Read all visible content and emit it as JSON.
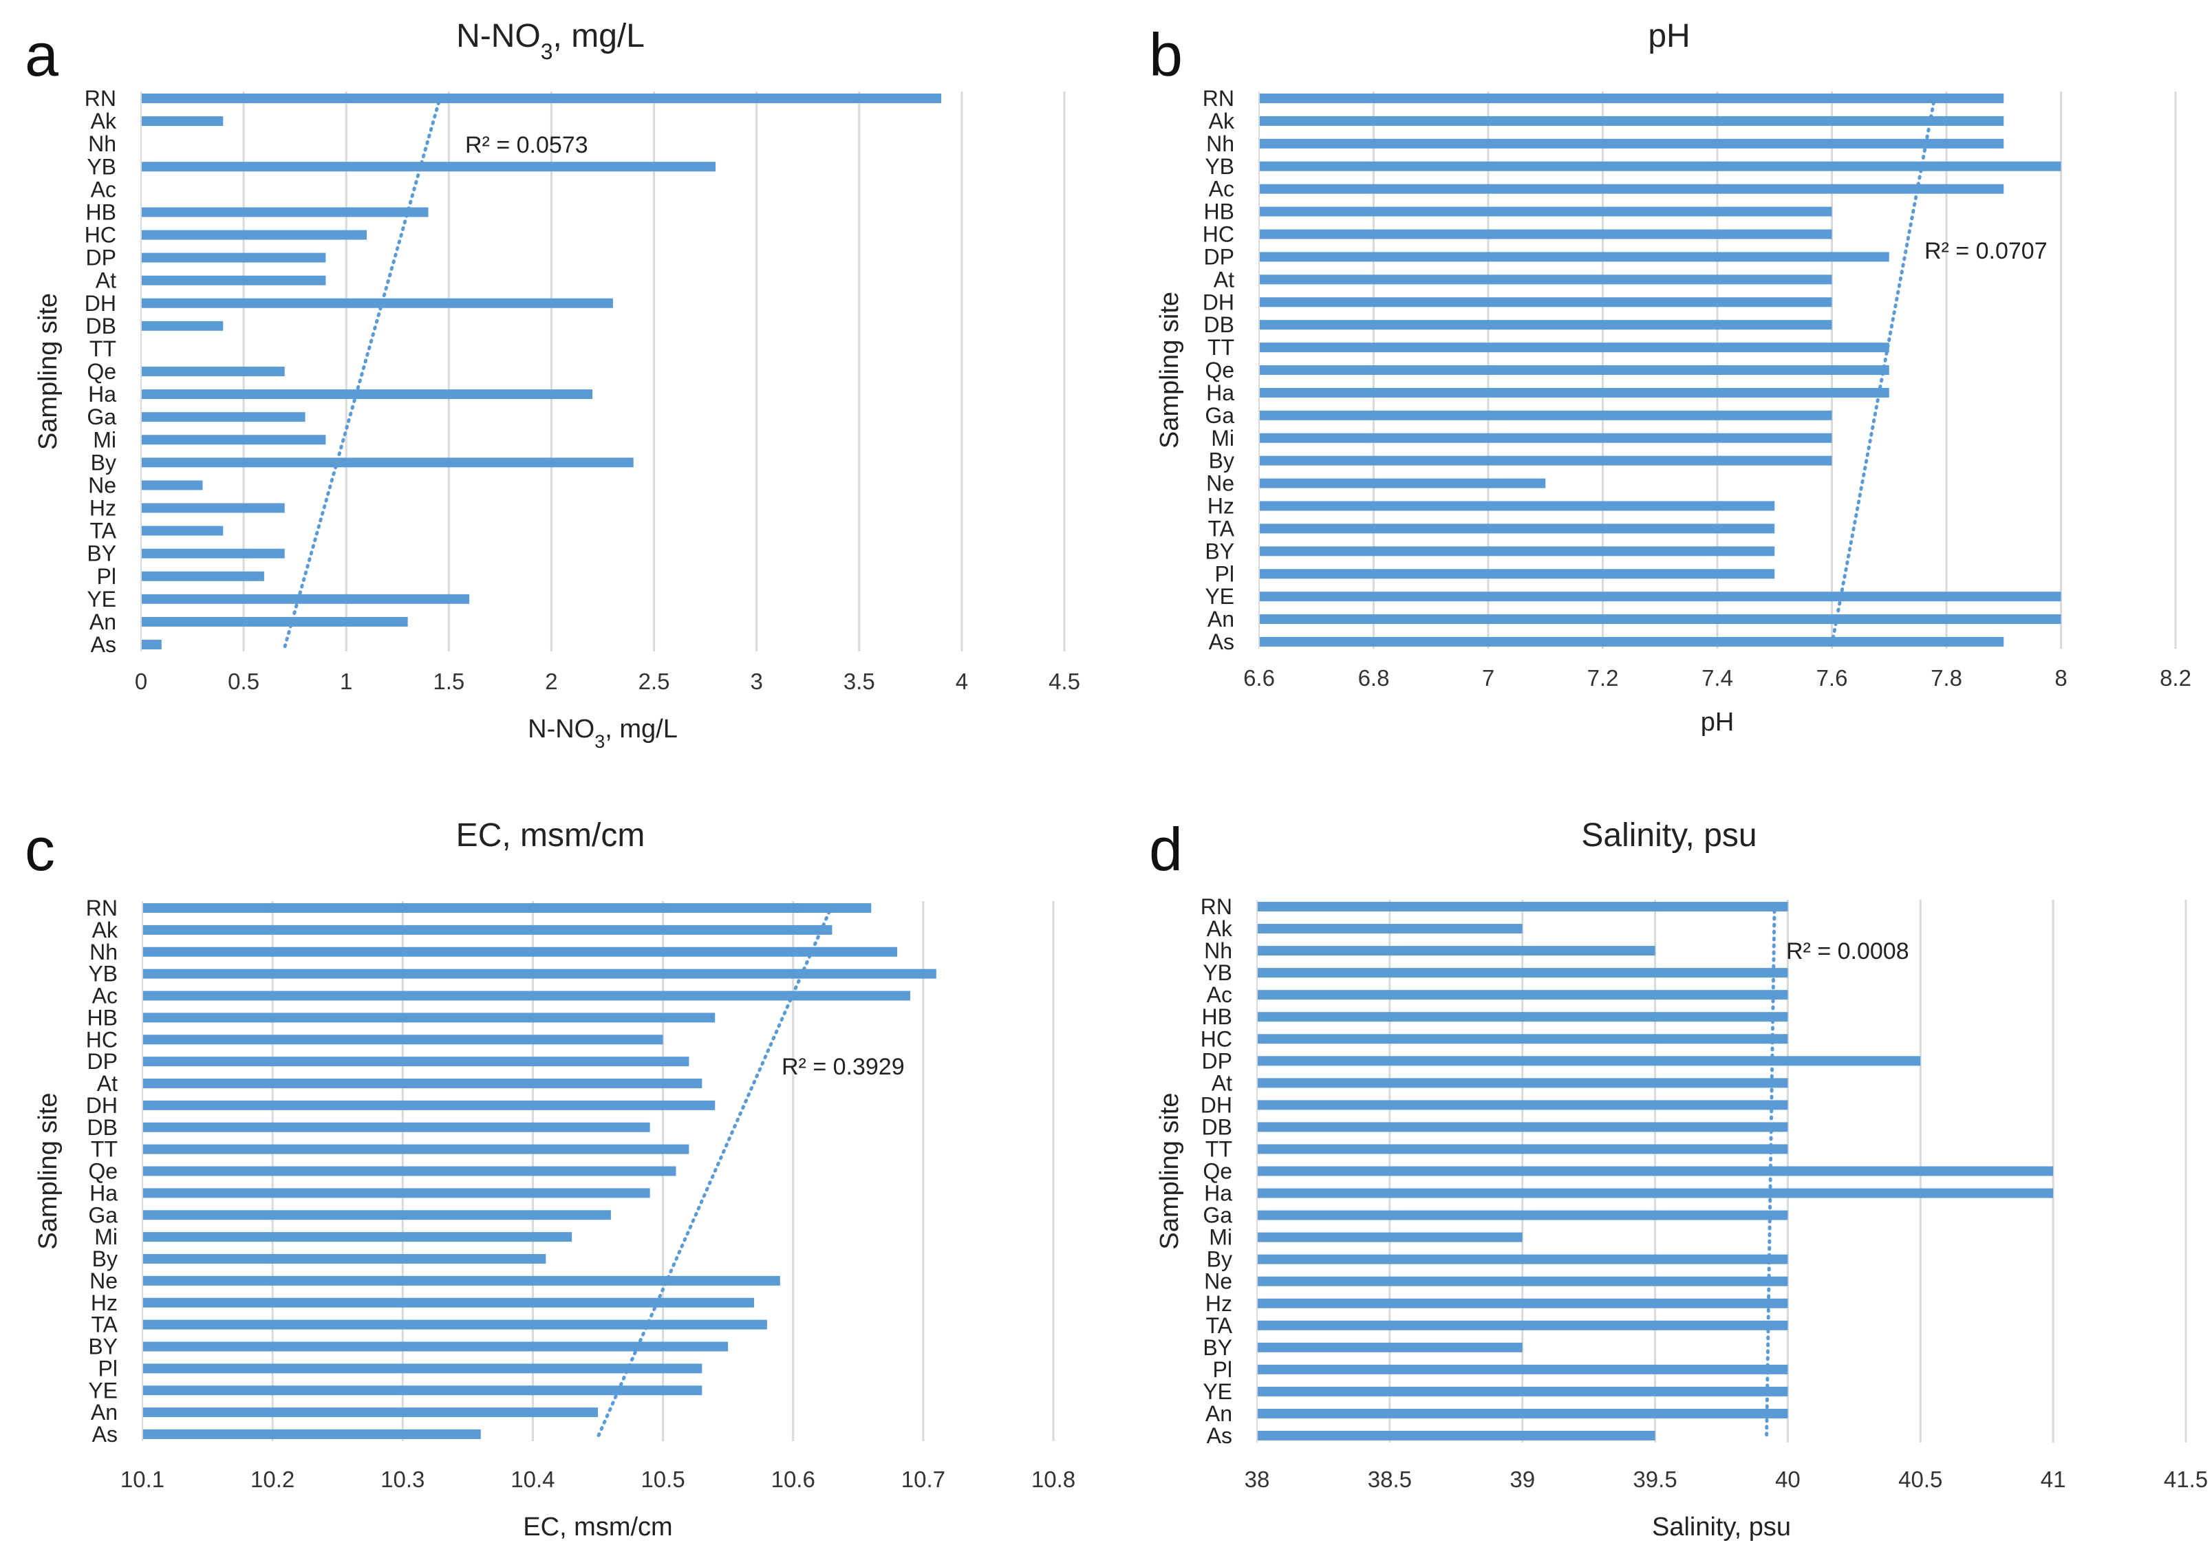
{
  "colors": {
    "bar": "#5b9bd5",
    "trend": "#5b9bd5",
    "grid": "#d9d9d9"
  },
  "chart_data": [
    {
      "panel_letter": "a",
      "type": "bar",
      "orientation": "horizontal",
      "title": "N-NO",
      "title_sub": "3",
      "title_tail": ", mg/L",
      "xlabel": "N-NO",
      "xlabel_sub": "3",
      "xlabel_tail": ", mg/L",
      "ylabel": "Sampling site",
      "xlim": [
        0,
        4.5
      ],
      "xticks": [
        "0",
        "0.5",
        "1",
        "1.5",
        "2",
        "2.5",
        "3",
        "3.5",
        "4",
        "4.5"
      ],
      "categories": [
        "RN",
        "Ak",
        "Nh",
        "YB",
        "Ac",
        "HB",
        "HC",
        "DP",
        "At",
        "DH",
        "DB",
        "TT",
        "Qe",
        "Ha",
        "Ga",
        "Mi",
        "By",
        "Ne",
        "Hz",
        "TA",
        "BY",
        "Pl",
        "YE",
        "An",
        "As"
      ],
      "values": [
        3.9,
        0.4,
        0,
        2.8,
        0,
        1.4,
        1.1,
        0.9,
        0.9,
        2.3,
        0.4,
        0,
        0.7,
        2.2,
        0.8,
        0.9,
        2.4,
        0.3,
        0.7,
        0.4,
        0.7,
        0.6,
        1.6,
        1.3,
        0.1
      ],
      "trendline": {
        "type": "linear",
        "top_value": 1.46,
        "bottom_value": 0.7,
        "r2_label": "R² = 0.0573"
      }
    },
    {
      "panel_letter": "b",
      "type": "bar",
      "orientation": "horizontal",
      "title": "pH",
      "title_sub": "",
      "title_tail": "",
      "xlabel": "pH",
      "xlabel_sub": "",
      "xlabel_tail": "",
      "ylabel": "Sampling site",
      "xlim": [
        6.6,
        8.2
      ],
      "xticks": [
        "6.6",
        "6.8",
        "7",
        "7.2",
        "7.4",
        "7.6",
        "7.8",
        "8",
        "8.2"
      ],
      "categories": [
        "RN",
        "Ak",
        "Nh",
        "YB",
        "Ac",
        "HB",
        "HC",
        "DP",
        "At",
        "DH",
        "DB",
        "TT",
        "Qe",
        "Ha",
        "Ga",
        "Mi",
        "By",
        "Ne",
        "Hz",
        "TA",
        "BY",
        "Pl",
        "YE",
        "An",
        "As"
      ],
      "values": [
        7.9,
        7.9,
        7.9,
        8.0,
        7.9,
        7.6,
        7.6,
        7.7,
        7.6,
        7.6,
        7.6,
        7.7,
        7.7,
        7.7,
        7.6,
        7.6,
        7.6,
        7.1,
        7.5,
        7.5,
        7.5,
        7.5,
        8.0,
        8.0,
        7.9
      ],
      "trendline": {
        "type": "linear",
        "top_value": 7.78,
        "bottom_value": 7.6,
        "r2_label": "R² = 0.0707"
      }
    },
    {
      "panel_letter": "c",
      "type": "bar",
      "orientation": "horizontal",
      "title": "EC, msm/cm",
      "title_sub": "",
      "title_tail": "",
      "xlabel": "EC, msm/cm",
      "xlabel_sub": "",
      "xlabel_tail": "",
      "ylabel": "Sampling site",
      "xlim": [
        10.1,
        10.8
      ],
      "xticks": [
        "10.1",
        "10.2",
        "10.3",
        "10.4",
        "10.5",
        "10.6",
        "10.7",
        "10.8"
      ],
      "categories": [
        "RN",
        "Ak",
        "Nh",
        "YB",
        "Ac",
        "HB",
        "HC",
        "DP",
        "At",
        "DH",
        "DB",
        "TT",
        "Qe",
        "Ha",
        "Ga",
        "Mi",
        "By",
        "Ne",
        "Hz",
        "TA",
        "BY",
        "Pl",
        "YE",
        "An",
        "As"
      ],
      "values": [
        10.66,
        10.63,
        10.68,
        10.71,
        10.69,
        10.54,
        10.5,
        10.52,
        10.53,
        10.54,
        10.49,
        10.52,
        10.51,
        10.49,
        10.46,
        10.43,
        10.41,
        10.59,
        10.57,
        10.58,
        10.55,
        10.53,
        10.53,
        10.45,
        10.36
      ],
      "trendline": {
        "type": "linear",
        "top_value": 10.63,
        "bottom_value": 10.45,
        "r2_label": "R² = 0.3929"
      }
    },
    {
      "panel_letter": "d",
      "type": "bar",
      "orientation": "horizontal",
      "title": "Salinity, psu",
      "title_sub": "",
      "title_tail": "",
      "xlabel": "Salinity, psu",
      "xlabel_sub": "",
      "xlabel_tail": "",
      "ylabel": "Sampling site",
      "xlim": [
        38,
        41.5
      ],
      "xticks": [
        "38",
        "38.5",
        "39",
        "39.5",
        "40",
        "40.5",
        "41",
        "41.5"
      ],
      "categories": [
        "RN",
        "Ak",
        "Nh",
        "YB",
        "Ac",
        "HB",
        "HC",
        "DP",
        "At",
        "DH",
        "DB",
        "TT",
        "Qe",
        "Ha",
        "Ga",
        "Mi",
        "By",
        "Ne",
        "Hz",
        "TA",
        "BY",
        "Pl",
        "YE",
        "An",
        "As"
      ],
      "values": [
        40,
        39,
        39.5,
        40,
        40,
        40,
        40,
        40.5,
        40,
        40,
        40,
        40,
        41,
        41,
        40,
        39,
        40,
        40,
        40,
        40,
        39,
        40,
        40,
        40,
        39.5
      ],
      "trendline": {
        "type": "linear",
        "top_value": 39.95,
        "bottom_value": 39.92,
        "r2_label": "R² = 0.0008"
      }
    }
  ]
}
